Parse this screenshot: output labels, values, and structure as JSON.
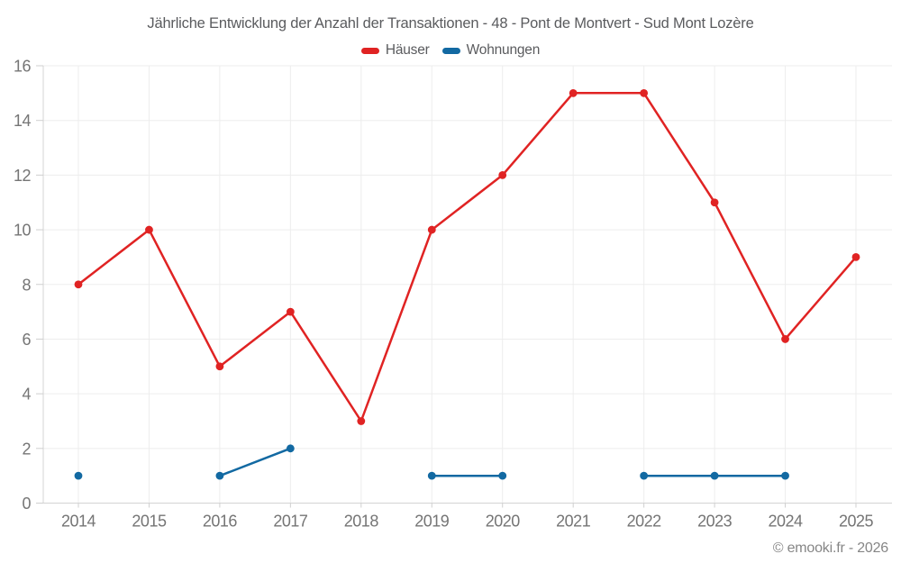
{
  "title": "Jährliche Entwicklung der Anzahl der Transaktionen - 48 - Pont de Montvert - Sud Mont Lozère",
  "footer": {
    "copyright": "© emooki.fr - 2026"
  },
  "colors": {
    "hauser": "#e02323",
    "wohnungen": "#1269a2",
    "grid": "#ededed",
    "axis": "#d4d4d4",
    "tick": "#cfcfcf",
    "label": "#757575"
  },
  "chart_data": {
    "type": "line",
    "x": [
      "2014",
      "2015",
      "2016",
      "2017",
      "2018",
      "2019",
      "2020",
      "2021",
      "2022",
      "2023",
      "2024",
      "2025"
    ],
    "series": [
      {
        "name": "Häuser",
        "color": "#e02323",
        "values": [
          8,
          10,
          5,
          7,
          3,
          10,
          12,
          15,
          15,
          11,
          6,
          9
        ]
      },
      {
        "name": "Wohnungen",
        "color": "#1269a2",
        "values": [
          1,
          null,
          1,
          2,
          null,
          1,
          1,
          null,
          1,
          1,
          1,
          null
        ]
      }
    ],
    "title": "Jährliche Entwicklung der Anzahl der Transaktionen - 48 - Pont de Montvert - Sud Mont Lozère",
    "xlabel": "",
    "ylabel": "",
    "ylim": [
      0,
      16
    ],
    "ytick_step": 2,
    "grid": true,
    "legend_position": "top"
  }
}
